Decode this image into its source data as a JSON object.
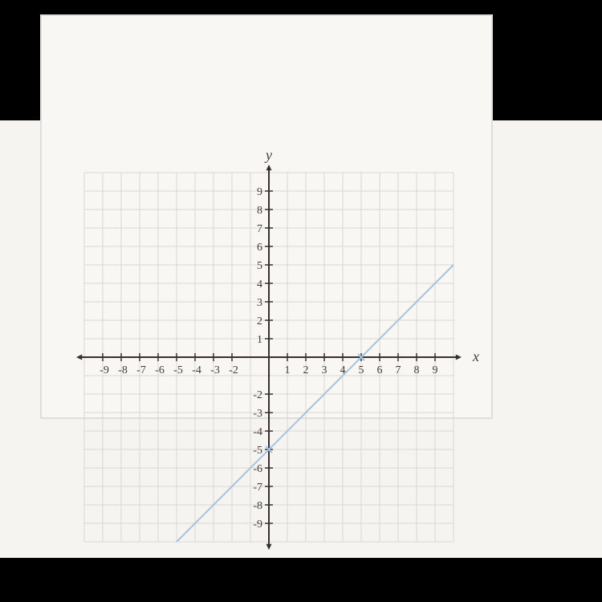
{
  "chart": {
    "type": "line",
    "xlim": [
      -10,
      10
    ],
    "ylim": [
      -10,
      10
    ],
    "xtick_step": 1,
    "ytick_step": 1,
    "xtick_labels": [
      -9,
      -8,
      -7,
      -6,
      -5,
      -4,
      -3,
      -2,
      1,
      2,
      3,
      4,
      5,
      6,
      7,
      8,
      9
    ],
    "ytick_labels": [
      -9,
      -8,
      -7,
      -6,
      -5,
      -4,
      -3,
      -2,
      1,
      2,
      3,
      4,
      5,
      6,
      7,
      8,
      9
    ],
    "xlabel": "x",
    "ylabel": "y",
    "grid_color": "#d9d7d0",
    "axis_color": "#3b2e2e",
    "axis_width": 2,
    "background_color": "#f8f7f4",
    "series": {
      "color": "#9ec5e8",
      "width": 2,
      "p1": {
        "x": -5,
        "y": -10
      },
      "p2": {
        "x": 10,
        "y": 5
      }
    },
    "markers": [
      {
        "x": 5,
        "y": 0,
        "color": "#9ec5e8"
      },
      {
        "x": 0,
        "y": -5,
        "color": "#9ec5e8"
      }
    ],
    "label_fontsize": 14,
    "axis_label_fontsize": 18,
    "plot_size": 460,
    "tick_len": 5
  }
}
